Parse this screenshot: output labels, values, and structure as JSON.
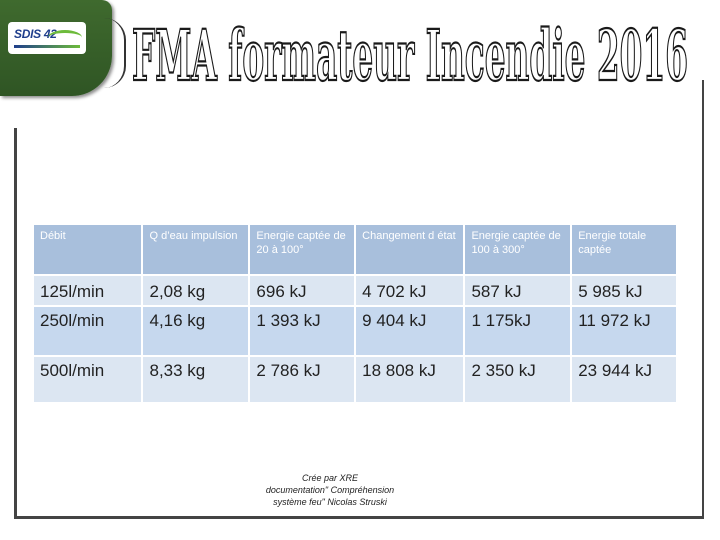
{
  "header": {
    "logo_text": "SDIS 42",
    "title": "FMA formateur Incendie 2016"
  },
  "table": {
    "headers": [
      "Débit",
      "Q d’eau impulsion",
      "Energie captée de 20 à 100°",
      "Changement d état",
      "Energie captée de 100 à 300°",
      "Energie totale captée"
    ],
    "rows": [
      [
        "125l/min",
        "2,08 kg",
        "696 kJ",
        "4 702 kJ",
        "587 kJ",
        "5 985 kJ"
      ],
      [
        "250l/min",
        "4,16 kg",
        "1 393 kJ",
        "9 404 kJ",
        "1 175kJ",
        "11 972 kJ"
      ],
      [
        "500l/min",
        "8,33 kg",
        "2 786 kJ",
        "18 808 kJ",
        "2 350 kJ",
        "23 944 kJ"
      ]
    ]
  },
  "footer": {
    "credit_line1": "Crée par XRE",
    "credit_line2": "documentation\" Compréhension",
    "credit_line3": "système feu\" Nicolas Struski"
  },
  "colors": {
    "header_green": "#3f6a2e",
    "table_header": "#a8bfdc",
    "table_row_light": "#dce6f2",
    "table_row_mid": "#c6d8ee"
  }
}
